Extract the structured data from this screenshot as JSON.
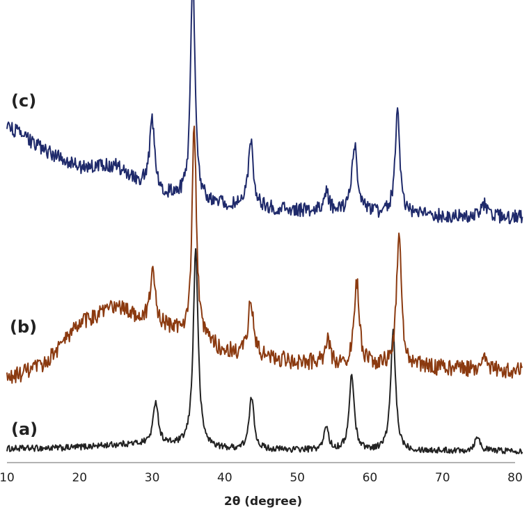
{
  "chart_data": {
    "type": "line",
    "title": "",
    "xlabel": "2θ (degree)",
    "ylabel": "",
    "xlim": [
      10,
      81
    ],
    "xticks": [
      "10",
      "20",
      "30",
      "40",
      "50",
      "60",
      "70",
      "80"
    ],
    "grid": false,
    "legend": "none",
    "series": [
      {
        "label": "(a)",
        "color": "#222222",
        "noise": 0.045,
        "baseline": [
          [
            10,
            0.1
          ],
          [
            18,
            0.11
          ],
          [
            26,
            0.16
          ],
          [
            30,
            0.17
          ],
          [
            40,
            0.09
          ],
          [
            60,
            0.07
          ],
          [
            80,
            0.07
          ]
        ],
        "peaks": [
          {
            "x": 30.5,
            "h": 0.62,
            "w": 0.8
          },
          {
            "x": 36.0,
            "h": 2.85,
            "w": 0.8
          },
          {
            "x": 43.7,
            "h": 0.75,
            "w": 0.8
          },
          {
            "x": 54.0,
            "h": 0.35,
            "w": 0.7
          },
          {
            "x": 57.5,
            "h": 1.09,
            "w": 0.8
          },
          {
            "x": 63.2,
            "h": 1.72,
            "w": 0.8
          },
          {
            "x": 74.8,
            "h": 0.22,
            "w": 0.8
          }
        ]
      },
      {
        "label": "(b)",
        "color": "#8B3A10",
        "noise": 0.12,
        "baseline": [
          [
            10,
            0.0
          ],
          [
            15,
            0.2
          ],
          [
            20,
            0.8
          ],
          [
            25,
            1.05
          ],
          [
            30,
            0.8
          ],
          [
            35,
            0.65
          ],
          [
            40,
            0.4
          ],
          [
            50,
            0.24
          ],
          [
            60,
            0.2
          ],
          [
            80,
            0.12
          ]
        ],
        "peaks": [
          {
            "x": 30.1,
            "h": 0.78,
            "w": 0.8
          },
          {
            "x": 35.8,
            "h": 3.05,
            "w": 0.7
          },
          {
            "x": 43.6,
            "h": 0.82,
            "w": 0.8
          },
          {
            "x": 54.2,
            "h": 0.32,
            "w": 0.8
          },
          {
            "x": 58.2,
            "h": 1.18,
            "w": 0.8
          },
          {
            "x": 64.0,
            "h": 1.9,
            "w": 0.8
          },
          {
            "x": 75.8,
            "h": 0.25,
            "w": 0.8
          }
        ]
      },
      {
        "label": "(c)",
        "color": "#1F2A6B",
        "noise": 0.1,
        "baseline": [
          [
            10,
            1.4
          ],
          [
            15,
            1.05
          ],
          [
            20,
            0.8
          ],
          [
            25,
            0.82
          ],
          [
            28,
            0.6
          ],
          [
            32,
            0.4
          ],
          [
            40,
            0.25
          ],
          [
            50,
            0.17
          ],
          [
            60,
            0.13
          ],
          [
            70,
            0.09
          ],
          [
            80,
            0.08
          ]
        ],
        "peaks": [
          {
            "x": 30.0,
            "h": 0.98,
            "w": 0.8
          },
          {
            "x": 35.6,
            "h": 3.3,
            "w": 0.7
          },
          {
            "x": 43.6,
            "h": 0.98,
            "w": 0.8
          },
          {
            "x": 54.0,
            "h": 0.3,
            "w": 0.8
          },
          {
            "x": 57.9,
            "h": 1.0,
            "w": 0.9
          },
          {
            "x": 63.8,
            "h": 1.45,
            "w": 0.8
          },
          {
            "x": 75.8,
            "h": 0.2,
            "w": 0.8
          }
        ]
      }
    ]
  }
}
